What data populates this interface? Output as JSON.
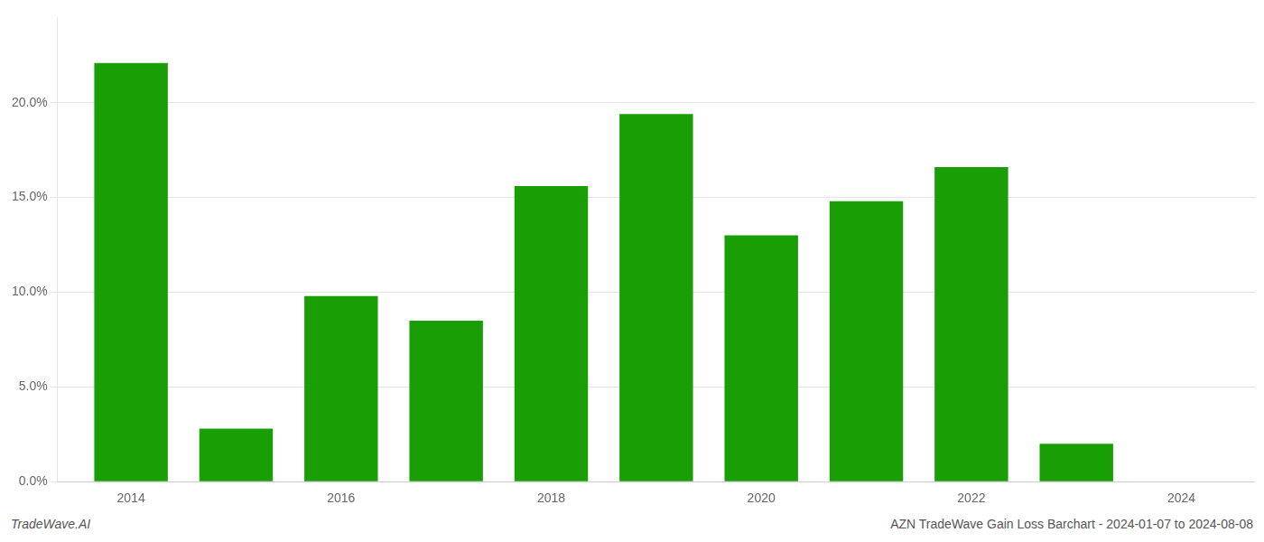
{
  "chart_data": {
    "type": "bar",
    "x": [
      2014,
      2015,
      2016,
      2017,
      2018,
      2019,
      2020,
      2021,
      2022,
      2023
    ],
    "values": [
      0.221,
      0.028,
      0.098,
      0.085,
      0.156,
      0.194,
      0.13,
      0.148,
      0.166,
      0.02
    ],
    "color": "#1a9e06",
    "xlim": [
      2013.3,
      2024.7
    ],
    "xticks": [
      2014,
      2016,
      2018,
      2020,
      2022,
      2024
    ],
    "ylim": [
      0,
      0.245
    ],
    "yticks": [
      {
        "value": 0.0,
        "label": "0.0%"
      },
      {
        "value": 0.05,
        "label": "5.0%"
      },
      {
        "value": 0.1,
        "label": "10.0%"
      },
      {
        "value": 0.15,
        "label": "15.0%"
      },
      {
        "value": 0.2,
        "label": "20.0%"
      }
    ],
    "grid": "y",
    "annotations": [
      "TradeWave.AI",
      "AZN TradeWave Gain Loss Barchart - 2024-01-07 to 2024-08-08"
    ]
  }
}
